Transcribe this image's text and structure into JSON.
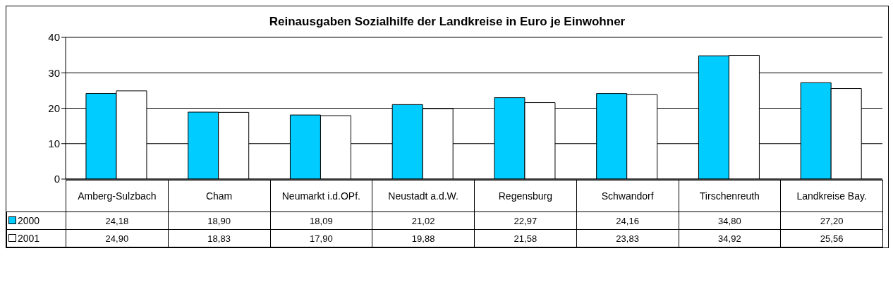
{
  "chart_data": {
    "type": "bar",
    "title": "Reinausgaben Sozialhilfe der Landkreise in Euro je Einwohner",
    "categories": [
      "Amberg-Sulzbach",
      "Cham",
      "Neumarkt i.d.OPf.",
      "Neustadt a.d.W.",
      "Regensburg",
      "Schwandorf",
      "Tirschenreuth",
      "Landkreise Bay."
    ],
    "series": [
      {
        "name": "2000",
        "color": "#00ccff",
        "values": [
          24.18,
          18.9,
          18.09,
          21.02,
          22.97,
          24.16,
          34.8,
          27.2
        ],
        "value_labels": [
          "24,18",
          "18,90",
          "18,09",
          "21,02",
          "22,97",
          "24,16",
          "34,80",
          "27,20"
        ]
      },
      {
        "name": "2001",
        "color": "#ffffff",
        "values": [
          24.9,
          18.83,
          17.9,
          19.88,
          21.58,
          23.83,
          34.92,
          25.56
        ],
        "value_labels": [
          "24,90",
          "18,83",
          "17,90",
          "19,88",
          "21,58",
          "23,83",
          "34,92",
          "25,56"
        ]
      }
    ],
    "ylim": [
      0,
      40
    ],
    "yticks": [
      0,
      10,
      20,
      30,
      40
    ],
    "grid": "y",
    "legend": "bottom left"
  }
}
